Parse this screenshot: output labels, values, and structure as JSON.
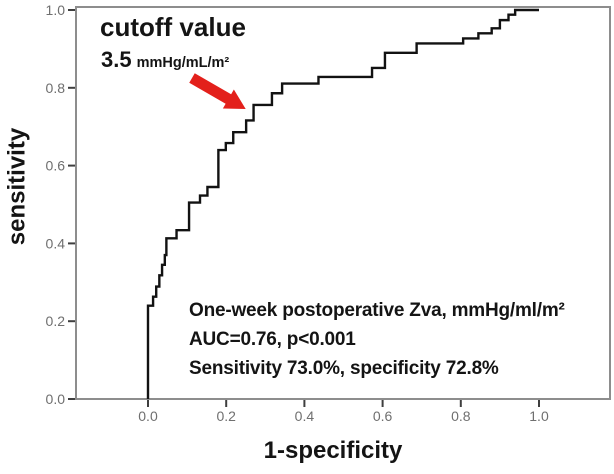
{
  "chart_data": {
    "type": "line",
    "subtype": "roc-step-curve",
    "title": "",
    "xlabel": "1-specificity",
    "ylabel": "sensitivity",
    "xlim": [
      0.0,
      1.0
    ],
    "ylim": [
      0.0,
      1.0
    ],
    "x_ticks": [
      "0.0",
      "0.2",
      "0.4",
      "0.6",
      "0.8",
      "1.0"
    ],
    "y_ticks": [
      "0.0",
      "0.2",
      "0.4",
      "0.6",
      "0.8",
      "1.0"
    ],
    "grid": false,
    "legend": "none",
    "series": [
      {
        "name": "One-week postoperative Zva ROC curve",
        "start": [
          0.0,
          0.0
        ],
        "steps": [
          [
            0.0,
            0.24
          ],
          [
            0.013,
            0.263
          ],
          [
            0.021,
            0.289
          ],
          [
            0.029,
            0.318
          ],
          [
            0.036,
            0.345
          ],
          [
            0.043,
            0.37
          ],
          [
            0.047,
            0.413
          ],
          [
            0.073,
            0.434
          ],
          [
            0.105,
            0.505
          ],
          [
            0.133,
            0.523
          ],
          [
            0.152,
            0.545
          ],
          [
            0.18,
            0.64
          ],
          [
            0.199,
            0.658
          ],
          [
            0.218,
            0.686
          ],
          [
            0.251,
            0.716
          ],
          [
            0.27,
            0.756
          ],
          [
            0.317,
            0.786
          ],
          [
            0.343,
            0.811
          ],
          [
            0.436,
            0.828
          ],
          [
            0.573,
            0.851
          ],
          [
            0.606,
            0.89
          ],
          [
            0.687,
            0.914
          ],
          [
            0.806,
            0.927
          ],
          [
            0.845,
            0.94
          ],
          [
            0.879,
            0.953
          ],
          [
            0.9,
            0.974
          ],
          [
            0.922,
            0.988
          ],
          [
            0.939,
            1.0
          ],
          [
            1.0,
            1.0
          ]
        ]
      }
    ],
    "cutoff_point": {
      "x": 0.272,
      "y": 0.73
    },
    "auc": 0.76,
    "p_value": "<0.001",
    "sensitivity_pct": 73.0,
    "specificity_pct": 72.8,
    "colors": {
      "curve": "#121212",
      "frame": "#8d8d8d",
      "tick_mark": "#3f3f3f",
      "tick_label": "#6f6f6f"
    }
  },
  "annotations": {
    "cutoff_title": "cutoff value",
    "cutoff_value": "3.5",
    "cutoff_unit": "mmHg/mL/m²",
    "arrow_color": "#e3201b",
    "stats_line1": "One-week postoperative Zva, mmHg/ml/m²",
    "stats_line2": "AUC=0.76, p<0.001",
    "stats_line3": "Sensitivity 73.0%, specificity 72.8%"
  }
}
